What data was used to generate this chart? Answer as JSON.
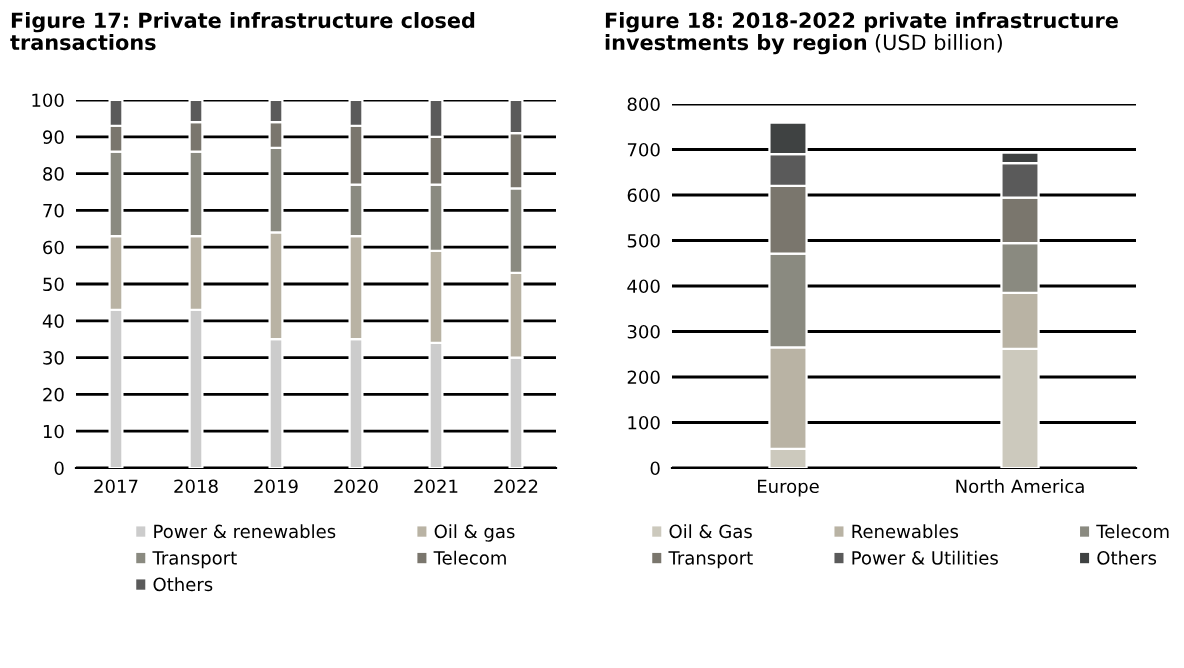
{
  "chart_data": [
    {
      "type": "bar",
      "title": "Figure 17: Private infrastructure closed transactions",
      "stacked": true,
      "categories": [
        "2017",
        "2018",
        "2019",
        "2020",
        "2021",
        "2022"
      ],
      "series": [
        {
          "name": "Power & renewables",
          "color": "#cccccc",
          "values": [
            43,
            43,
            35,
            35,
            34,
            30
          ]
        },
        {
          "name": "Oil & gas",
          "color": "#b9b3a4",
          "values": [
            20,
            20,
            29,
            28,
            25,
            23
          ]
        },
        {
          "name": "Transport",
          "color": "#8a8a80",
          "values": [
            23,
            23,
            23,
            14,
            18,
            23
          ]
        },
        {
          "name": "Telecom",
          "color": "#7a766d",
          "values": [
            7,
            8,
            7,
            16,
            13,
            15
          ]
        },
        {
          "name": "Others",
          "color": "#5a5a5a",
          "values": [
            7,
            6,
            6,
            7,
            10,
            9
          ]
        }
      ],
      "ylim": [
        0,
        100
      ],
      "yticks": [
        0,
        10,
        20,
        30,
        40,
        50,
        60,
        70,
        80,
        90,
        100
      ],
      "grid": "y",
      "legend": "bottom"
    },
    {
      "type": "bar",
      "title": "Figure 18: 2018-2022 private infrastructure investments by region",
      "subtitle": "(USD billion)",
      "stacked": true,
      "categories": [
        "Europe",
        "North America"
      ],
      "series": [
        {
          "name": "Oil & Gas",
          "color": "#ccc9bd",
          "values": [
            42,
            262
          ]
        },
        {
          "name": "Renewables",
          "color": "#b9b3a4",
          "values": [
            223,
            123
          ]
        },
        {
          "name": "Telecom",
          "color": "#8a8a80",
          "values": [
            206,
            109
          ]
        },
        {
          "name": "Transport",
          "color": "#7a766d",
          "values": [
            149,
            100
          ]
        },
        {
          "name": "Power & Utilities",
          "color": "#5a5a5a",
          "values": [
            70,
            76
          ]
        },
        {
          "name": "Others",
          "color": "#3f4242",
          "values": [
            69,
            23
          ]
        }
      ],
      "ylim": [
        0,
        800
      ],
      "yticks": [
        0,
        100,
        200,
        300,
        400,
        500,
        600,
        700,
        800
      ],
      "grid": "y",
      "legend": "bottom"
    }
  ]
}
